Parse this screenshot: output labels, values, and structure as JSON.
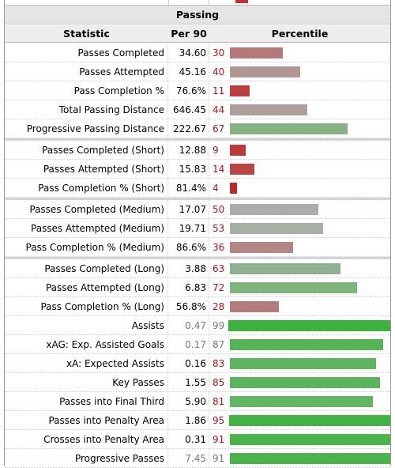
{
  "table": {
    "caption": "Passing",
    "columns": {
      "stat": "Statistic",
      "per90": "Per 90",
      "pct": "Percentile"
    },
    "rows": [
      {
        "stat": "Passes Completed",
        "per90": "34.60",
        "pct": "30",
        "pctValue": 30,
        "color": "#b57878",
        "numColor": "#a4161a",
        "valColor": "#000000"
      },
      {
        "stat": "Passes Attempted",
        "per90": "45.16",
        "pct": "40",
        "pctValue": 40,
        "color": "#b19696",
        "numColor": "#a4161a",
        "valColor": "#000000"
      },
      {
        "stat": "Pass Completion %",
        "per90": "76.6%",
        "pct": "11",
        "pctValue": 11,
        "color": "#b84040",
        "numColor": "#a4161a",
        "valColor": "#000000"
      },
      {
        "stat": "Total Passing Distance",
        "per90": "646.45",
        "pct": "44",
        "pctValue": 44,
        "color": "#ae9e9e",
        "numColor": "#a4161a",
        "valColor": "#000000"
      },
      {
        "stat": "Progressive Passing Distance",
        "per90": "222.67",
        "pct": "67",
        "pctValue": 67,
        "color": "#86b286",
        "numColor": "#a4161a",
        "valColor": "#000000"
      },
      {
        "stat": "Passes Completed (Short)",
        "per90": "12.88",
        "pct": "9",
        "pctValue": 9,
        "color": "#b83a3a",
        "numColor": "#a4161a",
        "valColor": "#000000",
        "sep": true
      },
      {
        "stat": "Passes Attempted (Short)",
        "per90": "15.83",
        "pct": "14",
        "pctValue": 14,
        "color": "#b84646",
        "numColor": "#a4161a",
        "valColor": "#000000"
      },
      {
        "stat": "Pass Completion % (Short)",
        "per90": "81.4%",
        "pct": "4",
        "pctValue": 4,
        "color": "#b82c2c",
        "numColor": "#a4161a",
        "valColor": "#000000"
      },
      {
        "stat": "Passes Completed (Medium)",
        "per90": "17.07",
        "pct": "50",
        "pctValue": 50,
        "color": "#ababab",
        "numColor": "#a4161a",
        "valColor": "#000000",
        "sep": true
      },
      {
        "stat": "Passes Attempted (Medium)",
        "per90": "19.71",
        "pct": "53",
        "pctValue": 53,
        "color": "#a6aea6",
        "numColor": "#a4161a",
        "valColor": "#000000"
      },
      {
        "stat": "Pass Completion % (Medium)",
        "per90": "86.6%",
        "pct": "36",
        "pctValue": 36,
        "color": "#b38686",
        "numColor": "#a4161a",
        "valColor": "#000000"
      },
      {
        "stat": "Passes Completed (Long)",
        "per90": "3.88",
        "pct": "63",
        "pctValue": 63,
        "color": "#8fb18f",
        "numColor": "#a4161a",
        "valColor": "#000000",
        "sep": true
      },
      {
        "stat": "Passes Attempted (Long)",
        "per90": "6.83",
        "pct": "72",
        "pctValue": 72,
        "color": "#7fb47f",
        "numColor": "#a4161a",
        "valColor": "#000000"
      },
      {
        "stat": "Pass Completion % (Long)",
        "per90": "56.8%",
        "pct": "28",
        "pctValue": 28,
        "color": "#b57a7a",
        "numColor": "#a4161a",
        "valColor": "#000000"
      },
      {
        "stat": "Assists",
        "per90": "0.47",
        "pct": "99",
        "pctValue": 99,
        "color": "#3db13d",
        "numColor": "#777777",
        "valColor": "#777777"
      },
      {
        "stat": "xAG: Exp. Assisted Goals",
        "per90": "0.17",
        "pct": "87",
        "pctValue": 87,
        "color": "#56b456",
        "numColor": "#777777",
        "valColor": "#777777"
      },
      {
        "stat": "xA: Expected Assists",
        "per90": "0.16",
        "pct": "83",
        "pctValue": 83,
        "color": "#5fb45f",
        "numColor": "#a4161a",
        "valColor": "#000000"
      },
      {
        "stat": "Key Passes",
        "per90": "1.55",
        "pct": "85",
        "pctValue": 85,
        "color": "#5bb45b",
        "numColor": "#a4161a",
        "valColor": "#000000"
      },
      {
        "stat": "Passes into Final Third",
        "per90": "5.90",
        "pct": "81",
        "pctValue": 81,
        "color": "#63b463",
        "numColor": "#a4161a",
        "valColor": "#000000"
      },
      {
        "stat": "Passes into Penalty Area",
        "per90": "1.86",
        "pct": "95",
        "pctValue": 95,
        "color": "#44b244",
        "numColor": "#a4161a",
        "valColor": "#000000"
      },
      {
        "stat": "Crosses into Penalty Area",
        "per90": "0.31",
        "pct": "91",
        "pctValue": 91,
        "color": "#4cb34c",
        "numColor": "#a4161a",
        "valColor": "#000000"
      },
      {
        "stat": "Progressive Passes",
        "per90": "7.45",
        "pct": "91",
        "pctValue": 91,
        "color": "#4cb34c",
        "numColor": "#777777",
        "valColor": "#777777"
      }
    ]
  }
}
